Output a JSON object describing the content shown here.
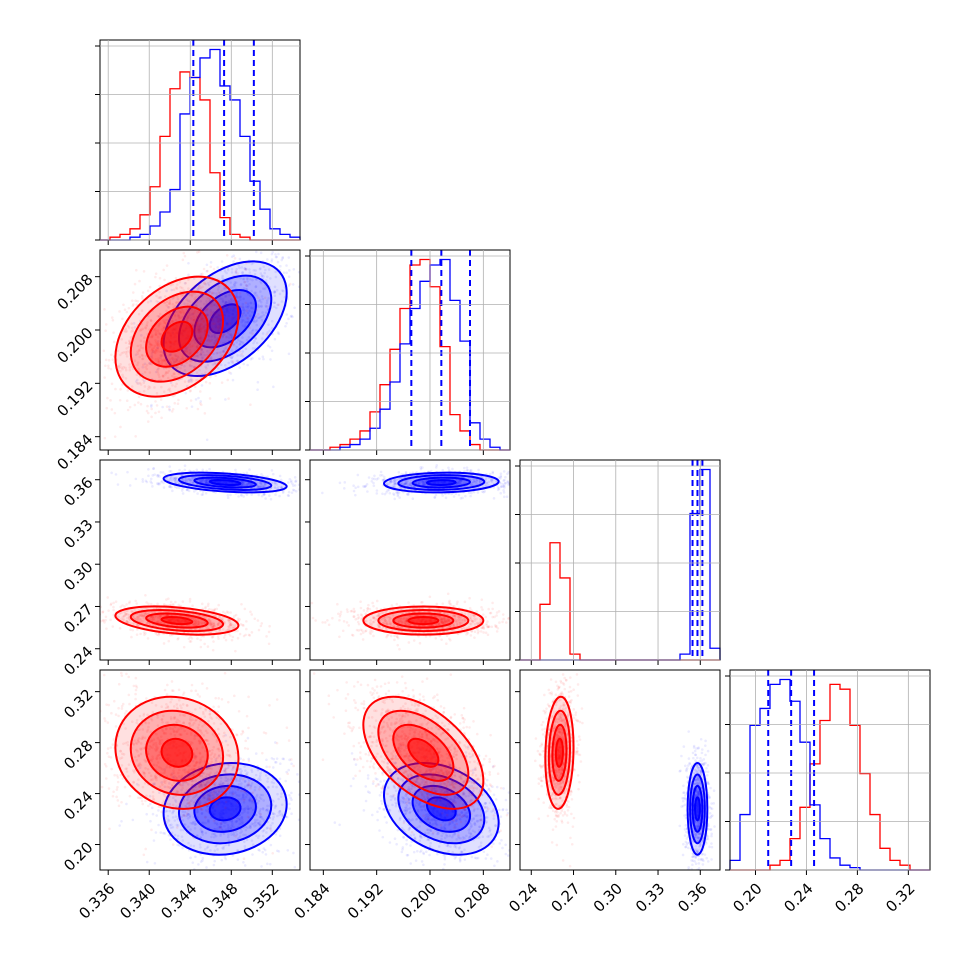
{
  "chart_data": {
    "type": "corner",
    "colors": {
      "blue": "#0000ff",
      "red": "#ff0000",
      "grid": "#b0b0b0"
    },
    "params": [
      {
        "range": [
          0.3352,
          0.3547
        ],
        "ticks": [
          0.336,
          0.34,
          0.344,
          0.348,
          0.352
        ],
        "tick_labels": [
          "0.336",
          "0.340",
          "0.344",
          "0.348",
          "0.352"
        ]
      },
      {
        "range": [
          0.182,
          0.212
        ],
        "ticks": [
          0.184,
          0.192,
          0.2,
          0.208
        ],
        "tick_labels": [
          "0.184",
          "0.192",
          "0.200",
          "0.208"
        ]
      },
      {
        "range": [
          0.232,
          0.374
        ],
        "ticks": [
          0.24,
          0.27,
          0.3,
          0.33,
          0.36
        ],
        "tick_labels": [
          "0.24",
          "0.27",
          "0.30",
          "0.33",
          "0.36"
        ]
      },
      {
        "range": [
          0.18,
          0.337
        ],
        "ticks": [
          0.2,
          0.24,
          0.28,
          0.32
        ],
        "tick_labels": [
          "0.20",
          "0.24",
          "0.28",
          "0.32"
        ]
      }
    ],
    "series": [
      {
        "color": "blue",
        "mean": [
          0.3474,
          0.2017,
          0.358,
          0.228
        ],
        "std": [
          0.003,
          0.0043,
          0.0035,
          0.018
        ],
        "corr": [
          [
            1,
            0.45,
            -0.4,
            0.1
          ],
          [
            0.45,
            1,
            0.1,
            -0.3
          ],
          [
            -0.4,
            0.1,
            1,
            0
          ],
          [
            0.1,
            -0.3,
            0,
            1
          ]
        ]
      },
      {
        "color": "red",
        "mean": [
          0.3427,
          0.199,
          0.26,
          0.272
        ],
        "std": [
          0.003,
          0.0045,
          0.005,
          0.022
        ],
        "corr": [
          [
            1,
            0.35,
            -0.35,
            -0.1
          ],
          [
            0.35,
            1,
            0,
            -0.5
          ],
          [
            -0.35,
            0,
            1,
            0.1
          ],
          [
            -0.1,
            -0.5,
            0.1,
            1
          ]
        ]
      }
    ],
    "quantiles_blue": [
      [
        0.3443,
        0.3473,
        0.3502
      ],
      [
        0.1972,
        0.2017,
        0.206
      ],
      [
        0.3545,
        0.358,
        0.3615
      ],
      [
        0.21,
        0.228,
        0.246
      ]
    ],
    "histograms": [
      {
        "bins": [
          0.3352,
          0.3547,
          20
        ],
        "blue": [
          0,
          0,
          0,
          1,
          2,
          5,
          10,
          18,
          45,
          58,
          65,
          68,
          55,
          50,
          37,
          21,
          11,
          4,
          2,
          1
        ],
        "red": [
          0,
          1,
          2,
          4,
          9,
          19,
          37,
          54,
          60,
          58,
          50,
          24,
          8,
          2,
          1,
          0,
          0,
          0,
          0,
          0
        ]
      },
      {
        "bins": [
          0.182,
          0.212,
          20
        ],
        "blue": [
          0,
          0,
          0,
          1,
          2,
          4,
          8,
          15,
          25,
          39,
          52,
          62,
          68,
          70,
          55,
          40,
          10,
          4,
          1,
          0
        ],
        "red": [
          0,
          0,
          1,
          2,
          4,
          7,
          14,
          24,
          37,
          52,
          68,
          70,
          60,
          38,
          13,
          7,
          2,
          0,
          0,
          0
        ]
      },
      {
        "bins": [
          0.232,
          0.374,
          20
        ],
        "blue": [
          0,
          0,
          0,
          0,
          0,
          0,
          0,
          0,
          0,
          0,
          0,
          0,
          0,
          0,
          0,
          0,
          2,
          50,
          65,
          4
        ],
        "red": [
          0,
          0,
          19,
          40,
          28,
          2,
          0,
          0,
          0,
          0,
          0,
          0,
          0,
          0,
          0,
          0,
          0,
          0,
          0,
          0
        ]
      },
      {
        "bins": [
          0.18,
          0.337,
          20
        ],
        "blue": [
          4,
          23,
          60,
          67,
          77,
          79,
          70,
          53,
          27,
          13,
          5,
          2,
          1,
          0,
          0,
          0,
          0,
          0,
          0,
          0
        ],
        "red": [
          0,
          0,
          0,
          0,
          2,
          4,
          13,
          26,
          44,
          62,
          77,
          75,
          60,
          40,
          23,
          9,
          4,
          2,
          0,
          0
        ]
      }
    ]
  }
}
